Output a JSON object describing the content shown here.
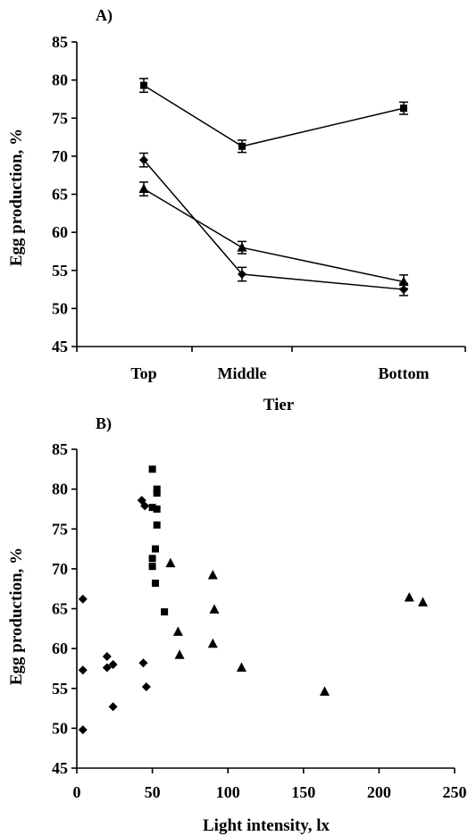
{
  "chart_data": [
    {
      "type": "line",
      "title": "A)",
      "xlabel": "Tier",
      "ylabel": "Egg production, %",
      "categories": [
        "Top",
        "Middle",
        "Bottom"
      ],
      "ylim": [
        45,
        85
      ],
      "yticks": [
        45,
        50,
        55,
        60,
        65,
        70,
        75,
        80,
        85
      ],
      "grid": false,
      "series": [
        {
          "marker": "square",
          "values": [
            79.3,
            71.3,
            76.3
          ],
          "errors": [
            0.9,
            0.8,
            0.8
          ]
        },
        {
          "marker": "diamond",
          "values": [
            69.5,
            54.5,
            52.5
          ],
          "errors": [
            0.9,
            0.9,
            0.8
          ]
        },
        {
          "marker": "triangle",
          "values": [
            65.7,
            58.0,
            53.5
          ],
          "errors": [
            0.9,
            0.8,
            0.9
          ]
        }
      ]
    },
    {
      "type": "scatter",
      "title": "B)",
      "xlabel": "Light intensity, lx",
      "ylabel": "Egg production, %",
      "xlim": [
        0,
        250
      ],
      "xticks": [
        0,
        50,
        100,
        150,
        200,
        250
      ],
      "ylim": [
        45,
        85
      ],
      "yticks": [
        45,
        50,
        55,
        60,
        65,
        70,
        75,
        80,
        85
      ],
      "grid": false,
      "series": [
        {
          "marker": "diamond",
          "points": [
            [
              4,
              66.2
            ],
            [
              4,
              57.3
            ],
            [
              4,
              49.8
            ],
            [
              20,
              59.0
            ],
            [
              20,
              57.6
            ],
            [
              24,
              58.0
            ],
            [
              24,
              52.7
            ],
            [
              43,
              78.6
            ],
            [
              45,
              77.9
            ],
            [
              44,
              58.2
            ],
            [
              46,
              55.2
            ]
          ]
        },
        {
          "marker": "square",
          "points": [
            [
              50,
              82.5
            ],
            [
              53,
              80.0
            ],
            [
              53,
              79.5
            ],
            [
              50,
              77.7
            ],
            [
              53,
              77.5
            ],
            [
              53,
              75.5
            ],
            [
              52,
              72.5
            ],
            [
              50,
              71.3
            ],
            [
              50,
              70.3
            ],
            [
              52,
              68.2
            ],
            [
              58,
              64.6
            ]
          ]
        },
        {
          "marker": "triangle",
          "points": [
            [
              62,
              70.7
            ],
            [
              67,
              62.1
            ],
            [
              68,
              59.2
            ],
            [
              90,
              69.2
            ],
            [
              91,
              64.9
            ],
            [
              90,
              60.6
            ],
            [
              109,
              57.6
            ],
            [
              164,
              54.6
            ],
            [
              220,
              66.4
            ],
            [
              229,
              65.8
            ]
          ]
        }
      ]
    }
  ]
}
